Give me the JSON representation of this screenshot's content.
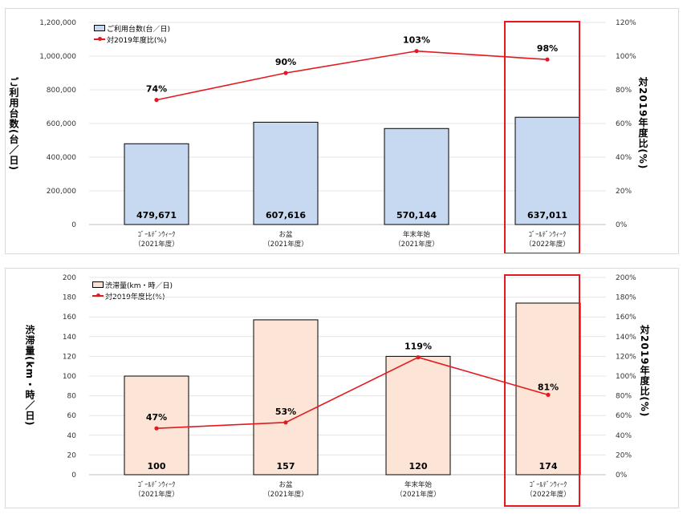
{
  "chart_data": [
    {
      "type": "bar",
      "categories": [
        [
          "ｺﾞｰﾙﾃﾞﾝｳｨｰｸ",
          "（2021年度）"
        ],
        [
          "お盆",
          "（2021年度）"
        ],
        [
          "年末年始",
          "（2021年度）"
        ],
        [
          "ｺﾞｰﾙﾃﾞﾝｳｨｰｸ",
          "（2022年度）"
        ]
      ],
      "series": [
        {
          "name": "ご利用台数(台／日)",
          "type": "bar",
          "axis": "left",
          "values": [
            479671,
            607616,
            570144,
            637011
          ],
          "labels": [
            "479,671",
            "607,616",
            "570,144",
            "637,011"
          ]
        },
        {
          "name": "対2019年度比(%)",
          "type": "line",
          "axis": "right",
          "values": [
            74,
            90,
            103,
            98
          ],
          "labels": [
            "74%",
            "90%",
            "103%",
            "98%"
          ]
        }
      ],
      "ylabel": "ご利用台数(台／日)",
      "y2label": "対2019年度比(%)",
      "ylim": [
        0,
        1200000
      ],
      "y2lim": [
        0,
        120
      ],
      "yticks": [
        "0",
        "200,000",
        "400,000",
        "600,000",
        "800,000",
        "1,000,000",
        "1,200,000"
      ],
      "y2ticks": [
        "0%",
        "20%",
        "40%",
        "60%",
        "80%",
        "100%",
        "120%"
      ],
      "highlight_category": 3,
      "legend_position": "top-left",
      "grid": true,
      "colors": {
        "bar": "#c6d9f1",
        "line": "#e3191f",
        "highlight": "#e3191f"
      }
    },
    {
      "type": "bar",
      "categories": [
        [
          "ｺﾞｰﾙﾃﾞﾝｳｨｰｸ",
          "（2021年度）"
        ],
        [
          "お盆",
          "（2021年度）"
        ],
        [
          "年末年始",
          "（2021年度）"
        ],
        [
          "ｺﾞｰﾙﾃﾞﾝｳｨｰｸ",
          "（2022年度）"
        ]
      ],
      "series": [
        {
          "name": "渋滞量(km・時／日)",
          "type": "bar",
          "axis": "left",
          "values": [
            100,
            157,
            120,
            174
          ],
          "labels": [
            "100",
            "157",
            "120",
            "174"
          ]
        },
        {
          "name": "対2019年度比(%)",
          "type": "line",
          "axis": "right",
          "values": [
            47,
            53,
            119,
            81
          ],
          "labels": [
            "47%",
            "53%",
            "119%",
            "81%"
          ]
        }
      ],
      "ylabel": "渋滞量(km・時／日)",
      "y2label": "対2019年度比(%)",
      "ylim": [
        0,
        200
      ],
      "y2lim": [
        0,
        200
      ],
      "yticks": [
        "0",
        "20",
        "40",
        "60",
        "80",
        "100",
        "120",
        "140",
        "160",
        "180",
        "200"
      ],
      "y2ticks": [
        "0%",
        "20%",
        "40%",
        "60%",
        "80%",
        "100%",
        "120%",
        "140%",
        "160%",
        "180%",
        "200%"
      ],
      "highlight_category": 3,
      "legend_position": "top-left",
      "grid": true,
      "colors": {
        "bar": "#fce4d6",
        "line": "#e3191f",
        "highlight": "#e3191f"
      }
    }
  ]
}
